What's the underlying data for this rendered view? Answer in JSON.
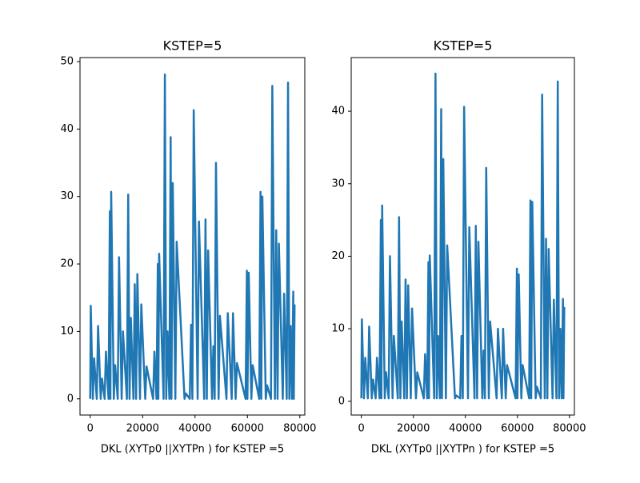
{
  "chart_data": [
    {
      "type": "line",
      "title": "KSTEP=5",
      "xlabel": "DKL (XYTp0 ||XYTPn ) for KSTEP =5",
      "x": [
        0,
        200,
        1000,
        1500,
        2500,
        3000,
        4000,
        4500,
        5500,
        6000,
        7000,
        7500,
        7700,
        8000,
        9000,
        9500,
        10500,
        11000,
        12000,
        12500,
        14000,
        14500,
        15000,
        15500,
        16500,
        17000,
        17500,
        18000,
        19000,
        19500,
        21000,
        21500,
        24000,
        24500,
        25300,
        25800,
        26000,
        26300,
        28000,
        28500,
        29000,
        29500,
        30200,
        30700,
        31000,
        31500,
        32500,
        33000,
        36000,
        36500,
        38000,
        38500,
        39000,
        39500,
        41000,
        41500,
        43500,
        44000,
        44500,
        45000,
        46500,
        47000,
        47500,
        48000,
        49000,
        49500,
        52000,
        52500,
        54000,
        54500,
        55500,
        56000,
        59300,
        59800,
        60000,
        60500,
        61500,
        62000,
        64500,
        65000,
        65300,
        65700,
        67000,
        67500,
        69000,
        69500,
        70500,
        71000,
        71500,
        72000,
        73500,
        74000,
        75000,
        75500,
        76000,
        76500,
        77000,
        77500,
        77700,
        78000
      ],
      "series": [
        {
          "color": "#1f77b4",
          "values": [
            0,
            13.8,
            0,
            6,
            0,
            10.8,
            0,
            3,
            0,
            7,
            0,
            27.8,
            0,
            30.7,
            0,
            5,
            0,
            21,
            0,
            10,
            0,
            30.3,
            0,
            12,
            0,
            17,
            0,
            18.5,
            0,
            14,
            0,
            4.8,
            0,
            7,
            0,
            20,
            0,
            21.5,
            0,
            48.1,
            0,
            10,
            0,
            38.8,
            0,
            32,
            0,
            23.3,
            0,
            0.8,
            0,
            11,
            0,
            42.8,
            0,
            26.3,
            0,
            26.6,
            0,
            22,
            0,
            7.8,
            0,
            35,
            0,
            12.3,
            0,
            12.7,
            0,
            12.7,
            0,
            5.3,
            0,
            19,
            0,
            18.7,
            0,
            5,
            0,
            30.7,
            0,
            30,
            0,
            2,
            0,
            46.4,
            0,
            25,
            0,
            23,
            0,
            15.6,
            0,
            46.9,
            0,
            10.8,
            0,
            15.9,
            0,
            14
          ]
        }
      ],
      "xlim": [
        -3900,
        81900
      ],
      "ylim": [
        -2.4,
        50.6
      ],
      "xticks": [
        0,
        20000,
        40000,
        60000,
        80000
      ],
      "yticks": [
        0,
        10,
        20,
        30,
        40,
        50
      ]
    },
    {
      "type": "line",
      "title": "KSTEP=5",
      "xlabel": "DKL (XYTp0 ||XYTPn ) for KSTEP =5",
      "x": [
        0,
        200,
        1000,
        1500,
        2500,
        3000,
        4000,
        4500,
        5500,
        6000,
        7000,
        7500,
        7700,
        8000,
        9000,
        9500,
        10500,
        11000,
        12000,
        12500,
        14000,
        14500,
        15000,
        15500,
        16500,
        17000,
        17500,
        18000,
        19000,
        19500,
        21000,
        21500,
        24000,
        24500,
        25300,
        25800,
        26000,
        26300,
        28000,
        28500,
        29000,
        29500,
        30200,
        30700,
        31000,
        31500,
        32500,
        33000,
        36000,
        36500,
        38000,
        38500,
        39000,
        39500,
        41000,
        41500,
        43500,
        44000,
        44500,
        45000,
        46500,
        47000,
        47500,
        48000,
        49000,
        49500,
        52000,
        52500,
        54000,
        54500,
        55500,
        56000,
        59300,
        59800,
        60000,
        60500,
        61500,
        62000,
        64500,
        65000,
        65300,
        65700,
        67000,
        67500,
        69000,
        69500,
        70500,
        71000,
        71500,
        72000,
        73500,
        74000,
        75000,
        75500,
        76000,
        76500,
        77000,
        77500,
        77700,
        78000
      ],
      "series": [
        {
          "color": "#1f77b4",
          "values": [
            0.4,
            11.3,
            0.4,
            6,
            0.4,
            10.3,
            0.4,
            3,
            0.4,
            6,
            0.4,
            25,
            0.4,
            27,
            0.4,
            4,
            0.4,
            20,
            0.4,
            9,
            0.4,
            25.4,
            0.4,
            11,
            0.4,
            16.8,
            0.4,
            16,
            0.4,
            12.8,
            0.4,
            4,
            0.4,
            6.5,
            0.4,
            19.2,
            0.4,
            20.1,
            0.4,
            45.2,
            0.4,
            9,
            0.4,
            40.3,
            0.4,
            33.4,
            0.4,
            21.5,
            0.4,
            0.8,
            0.4,
            9,
            0.4,
            40.6,
            0.4,
            24,
            0.4,
            24.2,
            0.4,
            22,
            0.4,
            7,
            0.4,
            32.2,
            0.4,
            11,
            0.4,
            10,
            0.4,
            10,
            0.4,
            5,
            0.4,
            18.3,
            0.4,
            17.5,
            0.4,
            5,
            0.4,
            27.7,
            0.4,
            27.5,
            0.4,
            2,
            0.4,
            42.3,
            0.4,
            22.4,
            0.4,
            21,
            0.4,
            14,
            0.4,
            44.1,
            0.4,
            10,
            0.4,
            14.1,
            0.4,
            13
          ]
        }
      ],
      "xlim": [
        -3900,
        81900
      ],
      "ylim": [
        -1.9,
        47.4
      ],
      "xticks": [
        0,
        20000,
        40000,
        60000,
        80000
      ],
      "yticks": [
        0,
        10,
        20,
        30,
        40
      ]
    }
  ]
}
